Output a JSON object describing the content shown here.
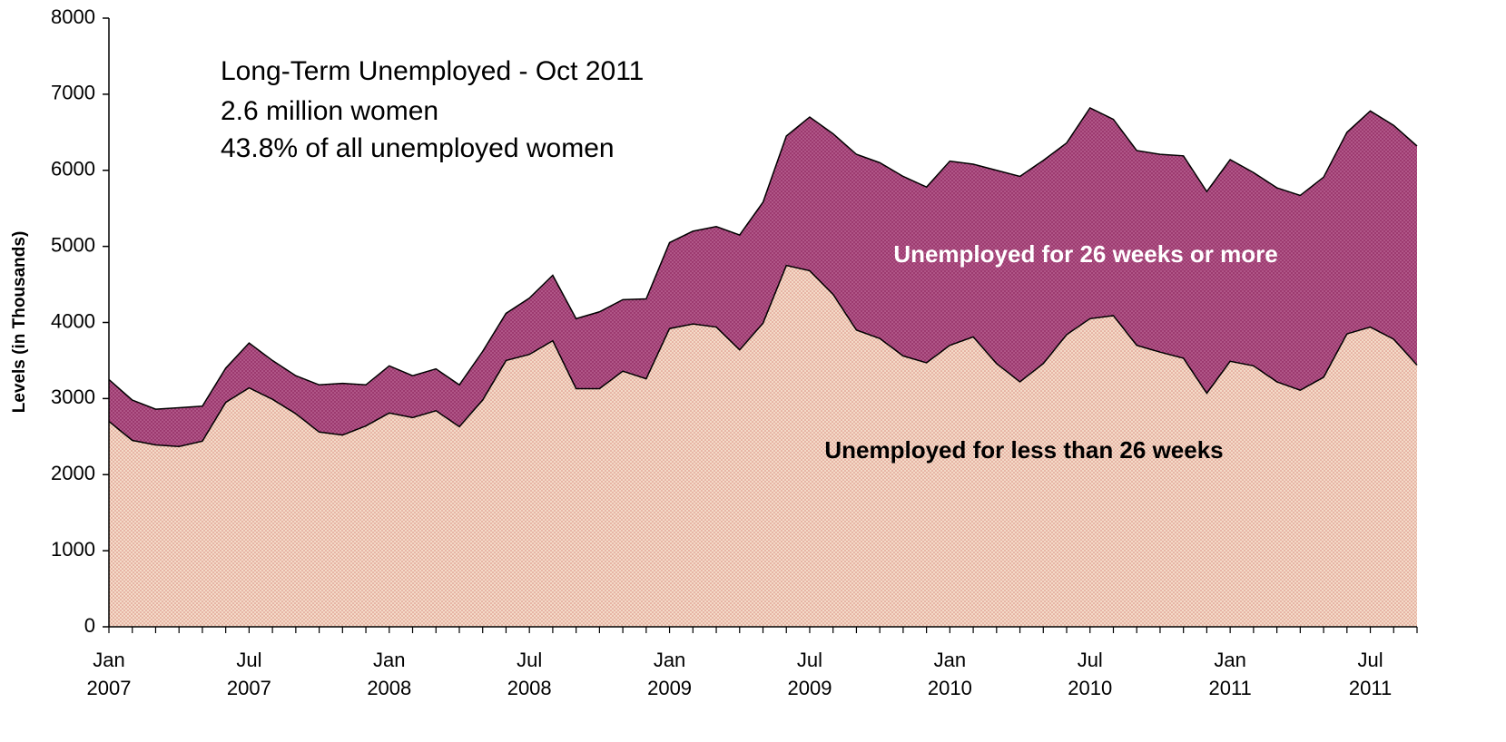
{
  "chart_data": {
    "type": "stacked_area",
    "annotations": [
      "Long-Term Unemployed - Oct 2011",
      "2.6 million women",
      "43.8% of all unemployed women"
    ],
    "y_label": "Levels (in Thousands)",
    "categories": [
      "Jan 2007",
      null,
      null,
      null,
      null,
      null,
      "Jul 2007",
      null,
      null,
      null,
      null,
      null,
      "Jan 2008",
      null,
      null,
      null,
      null,
      null,
      "Jul 2008",
      null,
      null,
      null,
      null,
      null,
      "Jan 2009",
      null,
      null,
      null,
      null,
      null,
      "Jul 2009",
      null,
      null,
      null,
      null,
      null,
      "Jan 2010",
      null,
      null,
      null,
      null,
      null,
      "Jul 2010",
      null,
      null,
      null,
      null,
      null,
      "Jan 2011",
      null,
      null,
      null,
      null,
      null,
      "Jul 2011",
      null,
      null
    ],
    "series": [
      {
        "name": "Unemployed for less than 26 weeks",
        "color": "#f4dac8",
        "values": [
          2700,
          2450,
          2390,
          2370,
          2440,
          2950,
          3140,
          2990,
          2800,
          2560,
          2520,
          2640,
          2810,
          2750,
          2840,
          2630,
          2980,
          3500,
          3580,
          3760,
          3130,
          3130,
          3360,
          3260,
          3920,
          3980,
          3940,
          3640,
          3990,
          4750,
          4680,
          4370,
          3900,
          3790,
          3560,
          3470,
          3700,
          3810,
          3460,
          3220,
          3460,
          3840,
          4050,
          4090,
          3700,
          3610,
          3530,
          3070,
          3490,
          3430,
          3220,
          3110,
          3280,
          3850,
          3940,
          3780,
          3440
        ]
      },
      {
        "name": "Unemployed for 26 weeks or more",
        "color": "#9c3a6f",
        "values": [
          550,
          530,
          470,
          510,
          460,
          450,
          590,
          510,
          500,
          620,
          680,
          540,
          620,
          550,
          550,
          550,
          640,
          620,
          740,
          860,
          920,
          1010,
          940,
          1050,
          1130,
          1220,
          1320,
          1510,
          1590,
          1700,
          2020,
          2110,
          2310,
          2310,
          2360,
          2310,
          2420,
          2270,
          2540,
          2700,
          2670,
          2520,
          2770,
          2580,
          2560,
          2600,
          2660,
          2650,
          2650,
          2540,
          2550,
          2560,
          2630,
          2650,
          2840,
          2810,
          2880
        ]
      }
    ],
    "ylim": [
      0,
      8000
    ],
    "yticks": [
      0,
      1000,
      2000,
      3000,
      4000,
      5000,
      6000,
      7000,
      8000
    ]
  }
}
